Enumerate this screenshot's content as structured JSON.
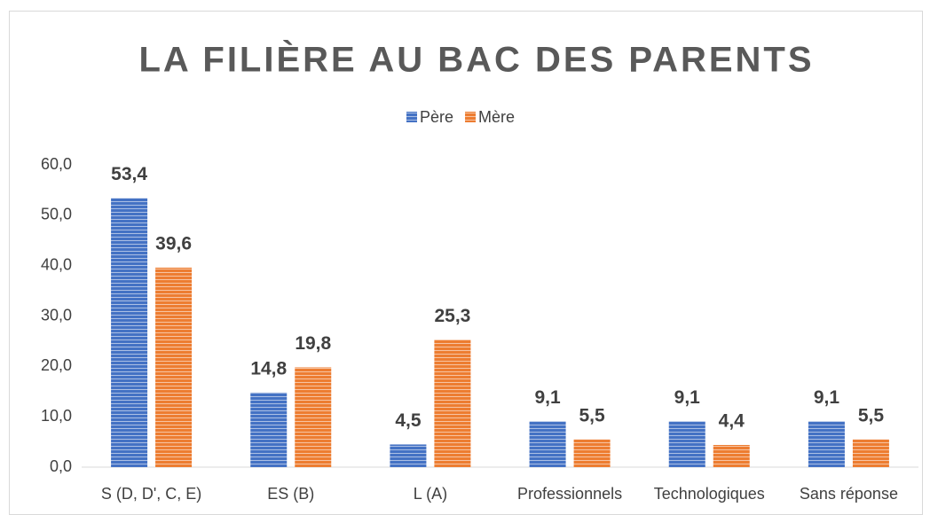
{
  "chart_data": {
    "type": "bar",
    "title": "LA FILIÈRE AU BAC DES PARENTS",
    "categories": [
      "S (D, D', C, E)",
      "ES (B)",
      "L (A)",
      "Professionnels",
      "Technologiques",
      "Sans réponse"
    ],
    "series": [
      {
        "name": "Père",
        "color": "#4472c4",
        "values": [
          53.4,
          14.8,
          4.5,
          9.1,
          9.1,
          9.1
        ],
        "value_labels": [
          "53,4",
          "14,8",
          "4,5",
          "9,1",
          "9,1",
          "9,1"
        ]
      },
      {
        "name": "Mère",
        "color": "#ed7d31",
        "values": [
          39.6,
          19.8,
          25.3,
          5.5,
          4.4,
          5.5
        ],
        "value_labels": [
          "39,6",
          "19,8",
          "25,3",
          "5,5",
          "4,4",
          "5,5"
        ]
      }
    ],
    "ylim": [
      0,
      60
    ],
    "yticks": [
      {
        "value": 0,
        "label": "0,0"
      },
      {
        "value": 10,
        "label": "10,0"
      },
      {
        "value": 20,
        "label": "20,0"
      },
      {
        "value": 30,
        "label": "30,0"
      },
      {
        "value": 40,
        "label": "40,0"
      },
      {
        "value": 50,
        "label": "50,0"
      },
      {
        "value": 60,
        "label": "60,0"
      }
    ],
    "legend": "top"
  }
}
